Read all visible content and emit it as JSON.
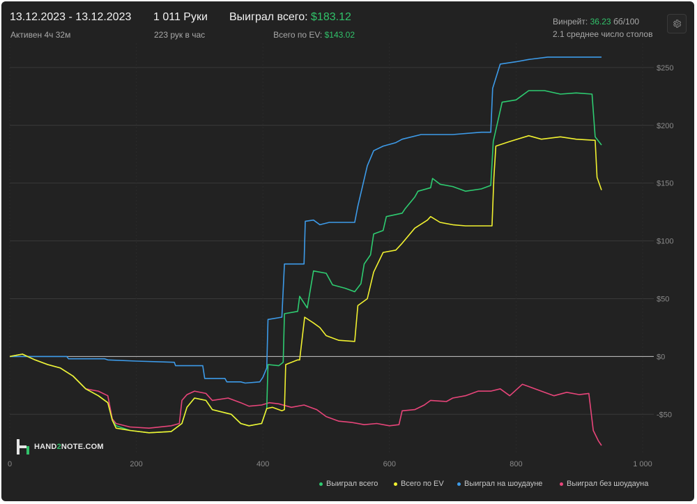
{
  "header": {
    "date_range": "13.12.2023 - 13.12.2023",
    "active_time": "Активен 4ч 32м",
    "hands": "1 011 Руки",
    "hands_per_hour": "223 рук в час",
    "won_total_label": "Выиграл всего:",
    "won_total_value": "$183.12",
    "ev_total_label": "Всего по EV:",
    "ev_total_value": "$143.02",
    "winrate_label": "Винрейт:",
    "winrate_value": "36.23",
    "winrate_unit": "бб/100",
    "avg_tables": "2.1 среднее число столов"
  },
  "logo": {
    "text_pre": "HAND",
    "text_mid": "2",
    "text_post": "NOTE.COM"
  },
  "colors": {
    "background": "#222222",
    "accent_green": "#31c26a",
    "series_green": "#2ecc71",
    "series_yellow": "#f2f230",
    "series_blue": "#3d9be9",
    "series_red": "#e8457a"
  },
  "icons": {
    "settings": "gear-icon"
  },
  "chart_data": {
    "type": "line",
    "xlim": [
      0,
      1011
    ],
    "ylim": [
      -80,
      265
    ],
    "x_ticks": [
      0,
      200,
      400,
      600,
      800,
      1000
    ],
    "x_tick_labels": [
      "0",
      "200",
      "400",
      "600",
      "800",
      "1 000"
    ],
    "y_ticks": [
      -50,
      0,
      50,
      100,
      150,
      200,
      250
    ],
    "y_tick_labels": [
      "-$50",
      "$0",
      "$50",
      "$100",
      "$150",
      "$200",
      "$250"
    ],
    "grid": true,
    "legend_position": "bottom-right",
    "series": [
      {
        "name": "Выиграл всего",
        "color": "#2ecc71",
        "points": [
          [
            0,
            0
          ],
          [
            20,
            2
          ],
          [
            40,
            -3
          ],
          [
            60,
            -7
          ],
          [
            80,
            -10
          ],
          [
            100,
            -17
          ],
          [
            120,
            -28
          ],
          [
            140,
            -34
          ],
          [
            155,
            -40
          ],
          [
            162,
            -55
          ],
          [
            168,
            -60
          ],
          [
            190,
            -64
          ],
          [
            220,
            -66
          ],
          [
            255,
            -65
          ],
          [
            272,
            -58
          ],
          [
            280,
            -44
          ],
          [
            292,
            -36
          ],
          [
            310,
            -38
          ],
          [
            320,
            -46
          ],
          [
            350,
            -50
          ],
          [
            365,
            -58
          ],
          [
            378,
            -60
          ],
          [
            398,
            -58
          ],
          [
            406,
            -45
          ],
          [
            408,
            -7
          ],
          [
            425,
            -8
          ],
          [
            432,
            -5
          ],
          [
            434,
            37
          ],
          [
            455,
            39
          ],
          [
            458,
            52
          ],
          [
            470,
            42
          ],
          [
            480,
            74
          ],
          [
            500,
            72
          ],
          [
            510,
            62
          ],
          [
            530,
            59
          ],
          [
            545,
            56
          ],
          [
            555,
            63
          ],
          [
            560,
            80
          ],
          [
            570,
            88
          ],
          [
            575,
            106
          ],
          [
            590,
            109
          ],
          [
            595,
            121
          ],
          [
            620,
            124
          ],
          [
            625,
            128
          ],
          [
            640,
            138
          ],
          [
            645,
            143
          ],
          [
            665,
            146
          ],
          [
            668,
            154
          ],
          [
            680,
            149
          ],
          [
            700,
            147
          ],
          [
            720,
            143
          ],
          [
            745,
            145
          ],
          [
            760,
            148
          ],
          [
            764,
            186
          ],
          [
            778,
            220
          ],
          [
            800,
            222
          ],
          [
            820,
            230
          ],
          [
            845,
            230
          ],
          [
            870,
            227
          ],
          [
            895,
            228
          ],
          [
            920,
            227
          ],
          [
            925,
            190
          ],
          [
            935,
            183
          ]
        ]
      },
      {
        "name": "Всего по EV",
        "color": "#f2f230",
        "points": [
          [
            0,
            0
          ],
          [
            20,
            2
          ],
          [
            40,
            -3
          ],
          [
            60,
            -7
          ],
          [
            80,
            -10
          ],
          [
            100,
            -17
          ],
          [
            120,
            -28
          ],
          [
            140,
            -34
          ],
          [
            155,
            -40
          ],
          [
            162,
            -55
          ],
          [
            168,
            -62
          ],
          [
            190,
            -64
          ],
          [
            220,
            -66
          ],
          [
            255,
            -65
          ],
          [
            272,
            -58
          ],
          [
            280,
            -44
          ],
          [
            292,
            -36
          ],
          [
            310,
            -38
          ],
          [
            320,
            -46
          ],
          [
            350,
            -50
          ],
          [
            365,
            -58
          ],
          [
            378,
            -60
          ],
          [
            398,
            -58
          ],
          [
            406,
            -45
          ],
          [
            415,
            -44
          ],
          [
            430,
            -47
          ],
          [
            434,
            -46
          ],
          [
            436,
            -7
          ],
          [
            455,
            -3
          ],
          [
            458,
            -3
          ],
          [
            466,
            34
          ],
          [
            480,
            29
          ],
          [
            490,
            25
          ],
          [
            500,
            18
          ],
          [
            520,
            14
          ],
          [
            545,
            13
          ],
          [
            550,
            44
          ],
          [
            565,
            50
          ],
          [
            575,
            73
          ],
          [
            590,
            90
          ],
          [
            610,
            92
          ],
          [
            620,
            98
          ],
          [
            640,
            111
          ],
          [
            660,
            118
          ],
          [
            665,
            121
          ],
          [
            680,
            116
          ],
          [
            700,
            114
          ],
          [
            720,
            113
          ],
          [
            762,
            113
          ],
          [
            765,
            155
          ],
          [
            768,
            182
          ],
          [
            790,
            186
          ],
          [
            820,
            191
          ],
          [
            840,
            188
          ],
          [
            870,
            190
          ],
          [
            895,
            188
          ],
          [
            925,
            187
          ],
          [
            928,
            155
          ],
          [
            935,
            144
          ]
        ]
      },
      {
        "name": "Выиграл на шоудауне",
        "color": "#3d9be9",
        "points": [
          [
            0,
            0
          ],
          [
            40,
            0
          ],
          [
            90,
            0
          ],
          [
            93,
            -2
          ],
          [
            150,
            -2
          ],
          [
            155,
            -3
          ],
          [
            200,
            -4
          ],
          [
            260,
            -5
          ],
          [
            262,
            -8
          ],
          [
            305,
            -8
          ],
          [
            308,
            -19
          ],
          [
            340,
            -19
          ],
          [
            343,
            -22
          ],
          [
            365,
            -22
          ],
          [
            372,
            -23
          ],
          [
            395,
            -22
          ],
          [
            400,
            -18
          ],
          [
            406,
            -10
          ],
          [
            408,
            32
          ],
          [
            430,
            34
          ],
          [
            434,
            80
          ],
          [
            465,
            80
          ],
          [
            467,
            117
          ],
          [
            480,
            118
          ],
          [
            490,
            114
          ],
          [
            505,
            116
          ],
          [
            545,
            116
          ],
          [
            550,
            130
          ],
          [
            565,
            165
          ],
          [
            575,
            178
          ],
          [
            590,
            182
          ],
          [
            610,
            185
          ],
          [
            620,
            188
          ],
          [
            650,
            192
          ],
          [
            700,
            192
          ],
          [
            745,
            194
          ],
          [
            760,
            194
          ],
          [
            763,
            232
          ],
          [
            775,
            253
          ],
          [
            800,
            255
          ],
          [
            820,
            257
          ],
          [
            850,
            259
          ],
          [
            900,
            259
          ],
          [
            935,
            259
          ]
        ]
      },
      {
        "name": "Выиграл без шоудауна",
        "color": "#e8457a",
        "points": [
          [
            0,
            0
          ],
          [
            20,
            2
          ],
          [
            40,
            -3
          ],
          [
            60,
            -7
          ],
          [
            80,
            -10
          ],
          [
            100,
            -17
          ],
          [
            120,
            -28
          ],
          [
            140,
            -30
          ],
          [
            155,
            -34
          ],
          [
            162,
            -54
          ],
          [
            168,
            -58
          ],
          [
            190,
            -61
          ],
          [
            220,
            -62
          ],
          [
            255,
            -60
          ],
          [
            268,
            -58
          ],
          [
            272,
            -38
          ],
          [
            280,
            -33
          ],
          [
            292,
            -30
          ],
          [
            310,
            -32
          ],
          [
            320,
            -38
          ],
          [
            345,
            -36
          ],
          [
            365,
            -40
          ],
          [
            378,
            -43
          ],
          [
            398,
            -42
          ],
          [
            410,
            -40
          ],
          [
            425,
            -41
          ],
          [
            445,
            -44
          ],
          [
            465,
            -42
          ],
          [
            485,
            -46
          ],
          [
            500,
            -52
          ],
          [
            520,
            -56
          ],
          [
            540,
            -57
          ],
          [
            560,
            -59
          ],
          [
            580,
            -58
          ],
          [
            600,
            -60
          ],
          [
            615,
            -59
          ],
          [
            620,
            -47
          ],
          [
            640,
            -46
          ],
          [
            655,
            -42
          ],
          [
            665,
            -38
          ],
          [
            690,
            -39
          ],
          [
            700,
            -36
          ],
          [
            720,
            -34
          ],
          [
            740,
            -30
          ],
          [
            760,
            -30
          ],
          [
            775,
            -28
          ],
          [
            790,
            -34
          ],
          [
            810,
            -24
          ],
          [
            820,
            -26
          ],
          [
            840,
            -30
          ],
          [
            860,
            -34
          ],
          [
            880,
            -31
          ],
          [
            900,
            -33
          ],
          [
            915,
            -32
          ],
          [
            922,
            -64
          ],
          [
            930,
            -73
          ],
          [
            935,
            -77
          ]
        ]
      }
    ]
  }
}
